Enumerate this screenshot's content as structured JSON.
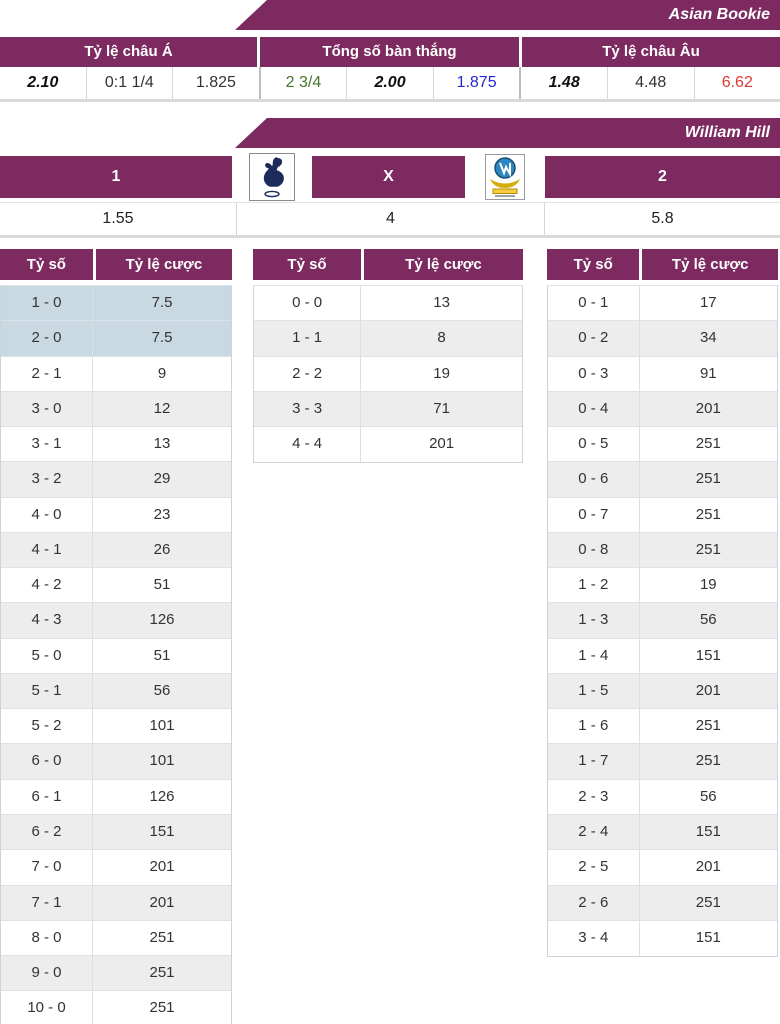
{
  "banners": {
    "asian_bookie": "Asian Bookie",
    "william_hill": "William Hill"
  },
  "odds_summary": {
    "headers": [
      "Tỷ lệ châu Á",
      "Tổng số bàn thắng",
      "Tỷ lệ châu Âu"
    ],
    "values": [
      {
        "text": "2.10",
        "style": "bi"
      },
      {
        "text": "0:1 1/4",
        "style": "plain"
      },
      {
        "text": "1.825",
        "style": "plain"
      },
      {
        "text": "2 3/4",
        "style": "green"
      },
      {
        "text": "2.00",
        "style": "bi"
      },
      {
        "text": "1.875",
        "style": "blue"
      },
      {
        "text": "1.48",
        "style": "bi"
      },
      {
        "text": "4.48",
        "style": "plain"
      },
      {
        "text": "6.62",
        "style": "red"
      }
    ]
  },
  "match_odds": {
    "home_label": "1",
    "draw_label": "X",
    "away_label": "2",
    "home_odds": "1.55",
    "draw_odds": "4",
    "away_odds": "5.8",
    "home_logo": "home-team-crest",
    "away_logo": "away-team-crest"
  },
  "score_tables": {
    "col_score": "Tỷ số",
    "col_odds": "Tỷ lệ cược",
    "home_win": [
      {
        "score": "1 - 0",
        "odds": "7.5",
        "hl": true
      },
      {
        "score": "2 - 0",
        "odds": "7.5",
        "hl": true
      },
      {
        "score": "2 - 1",
        "odds": "9"
      },
      {
        "score": "3 - 0",
        "odds": "12"
      },
      {
        "score": "3 - 1",
        "odds": "13"
      },
      {
        "score": "3 - 2",
        "odds": "29"
      },
      {
        "score": "4 - 0",
        "odds": "23"
      },
      {
        "score": "4 - 1",
        "odds": "26"
      },
      {
        "score": "4 - 2",
        "odds": "51"
      },
      {
        "score": "4 - 3",
        "odds": "126"
      },
      {
        "score": "5 - 0",
        "odds": "51"
      },
      {
        "score": "5 - 1",
        "odds": "56"
      },
      {
        "score": "5 - 2",
        "odds": "101"
      },
      {
        "score": "6 - 0",
        "odds": "101"
      },
      {
        "score": "6 - 1",
        "odds": "126"
      },
      {
        "score": "6 - 2",
        "odds": "151"
      },
      {
        "score": "7 - 0",
        "odds": "201"
      },
      {
        "score": "7 - 1",
        "odds": "201"
      },
      {
        "score": "8 - 0",
        "odds": "251"
      },
      {
        "score": "9 - 0",
        "odds": "251"
      },
      {
        "score": "10 - 0",
        "odds": "251"
      }
    ],
    "draw": [
      {
        "score": "0 - 0",
        "odds": "13"
      },
      {
        "score": "1 - 1",
        "odds": "8"
      },
      {
        "score": "2 - 2",
        "odds": "19"
      },
      {
        "score": "3 - 3",
        "odds": "71"
      },
      {
        "score": "4 - 4",
        "odds": "201"
      }
    ],
    "away_win": [
      {
        "score": "0 - 1",
        "odds": "17"
      },
      {
        "score": "0 - 2",
        "odds": "34"
      },
      {
        "score": "0 - 3",
        "odds": "91"
      },
      {
        "score": "0 - 4",
        "odds": "201"
      },
      {
        "score": "0 - 5",
        "odds": "251"
      },
      {
        "score": "0 - 6",
        "odds": "251"
      },
      {
        "score": "0 - 7",
        "odds": "251"
      },
      {
        "score": "0 - 8",
        "odds": "251"
      },
      {
        "score": "1 - 2",
        "odds": "19"
      },
      {
        "score": "1 - 3",
        "odds": "56"
      },
      {
        "score": "1 - 4",
        "odds": "151"
      },
      {
        "score": "1 - 5",
        "odds": "201"
      },
      {
        "score": "1 - 6",
        "odds": "251"
      },
      {
        "score": "1 - 7",
        "odds": "251"
      },
      {
        "score": "2 - 3",
        "odds": "56"
      },
      {
        "score": "2 - 4",
        "odds": "151"
      },
      {
        "score": "2 - 5",
        "odds": "201"
      },
      {
        "score": "2 - 6",
        "odds": "251"
      },
      {
        "score": "3 - 4",
        "odds": "151"
      }
    ]
  },
  "colors": {
    "accent_purple": "#7c2a60",
    "row_highlight_blue": "#c9d9e1",
    "row_alt_gray": "#ededed",
    "value_green": "#46762a",
    "value_blue": "#2626cf",
    "value_red": "#d93a32",
    "text_dark": "#333333"
  }
}
